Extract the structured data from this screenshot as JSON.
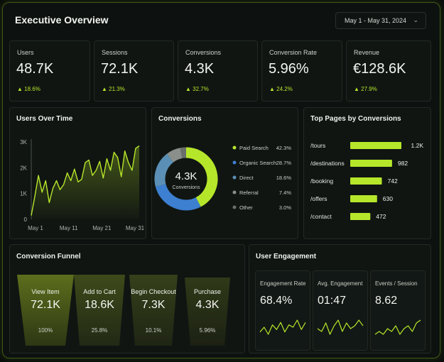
{
  "header": {
    "title": "Executive Overview",
    "date_range": "May 1 - May 31, 2024"
  },
  "kpis": [
    {
      "label": "Users",
      "value": "48.7K",
      "delta": "18.6%"
    },
    {
      "label": "Sessions",
      "value": "72.1K",
      "delta": "21.3%"
    },
    {
      "label": "Conversions",
      "value": "4.3K",
      "delta": "32.7%"
    },
    {
      "label": "Conversion Rate",
      "value": "5.96%",
      "delta": "24.2%"
    },
    {
      "label": "Revenue",
      "value": "€128.6K",
      "delta": "27.9%"
    }
  ],
  "colors": {
    "accent": "#b6e62a",
    "paid_search": "#b6e62a",
    "organic_search": "#3d7fd1",
    "direct": "#5b8fb5",
    "referral": "#8a8f8b",
    "other": "#6a6f6b"
  },
  "funnel": {
    "title": "Conversion Funnel",
    "stages": [
      {
        "label": "View Item",
        "value": "72.1K",
        "pct": "100%"
      },
      {
        "label": "Add to Cart",
        "value": "18.6K",
        "pct": "25.8%"
      },
      {
        "label": "Begin Checkout",
        "value": "7.3K",
        "pct": "10.1%"
      },
      {
        "label": "Purchase",
        "value": "4.3K",
        "pct": "5.96%"
      }
    ]
  },
  "engagement": {
    "title": "User Engagement",
    "metrics": [
      {
        "label": "Engagement Rate",
        "value": "68.4%",
        "spark": [
          3,
          5,
          2,
          6,
          4,
          7,
          3,
          6,
          5,
          8,
          4,
          7
        ]
      },
      {
        "label": "Avg. Engagement",
        "value": "01:47",
        "spark": [
          4,
          3,
          6,
          2,
          5,
          7,
          3,
          6,
          4,
          5,
          7,
          5
        ]
      },
      {
        "label": "Events / Session",
        "value": "8.62",
        "spark": [
          3,
          4,
          3,
          5,
          4,
          6,
          3,
          5,
          6,
          4,
          7,
          8
        ]
      }
    ]
  },
  "chart_data": [
    {
      "type": "area",
      "title": "Users Over Time",
      "x_ticks": [
        "May 1",
        "May 11",
        "May 21",
        "May 31"
      ],
      "y_ticks": [
        "0",
        "1K",
        "2K",
        "3K"
      ],
      "ylim": [
        0,
        3000
      ],
      "x": [
        1,
        2,
        3,
        4,
        5,
        6,
        7,
        8,
        9,
        10,
        11,
        12,
        13,
        14,
        15,
        16,
        17,
        18,
        19,
        20,
        21,
        22,
        23,
        24,
        25,
        26,
        27,
        28,
        29,
        30,
        31
      ],
      "values": [
        150,
        900,
        1700,
        1050,
        1500,
        650,
        1200,
        1500,
        1150,
        1350,
        1800,
        1500,
        1950,
        1450,
        1550,
        2200,
        2300,
        1700,
        1900,
        2250,
        1600,
        2350,
        1900,
        2600,
        2400,
        1650,
        2650,
        2200,
        1900,
        2750,
        2850
      ]
    },
    {
      "type": "pie",
      "title": "Conversions",
      "center_value": "4.3K",
      "center_label": "Conversions",
      "labels": [
        "Paid Search",
        "Organic Search",
        "Direct",
        "Referral",
        "Other"
      ],
      "values": [
        42.3,
        28.7,
        18.6,
        7.4,
        3.0
      ],
      "display": [
        "42.3%",
        "28.7%",
        "18.6%",
        "7.4%",
        "3.0%"
      ],
      "legend_position": "right"
    },
    {
      "type": "bar",
      "title": "Top Pages by Conversions",
      "categories": [
        "/tours",
        "/destinations",
        "/booking",
        "/offers",
        "/contact"
      ],
      "values": [
        1200,
        982,
        742,
        630,
        472
      ],
      "display": [
        "1.2K",
        "982",
        "742",
        "630",
        "472"
      ]
    }
  ]
}
